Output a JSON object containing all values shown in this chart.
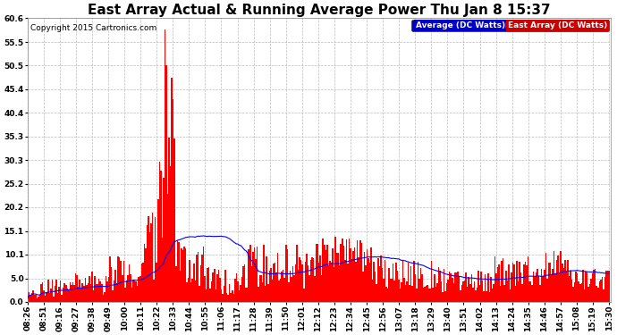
{
  "title": "East Array Actual & Running Average Power Thu Jan 8 15:37",
  "copyright": "Copyright 2015 Cartronics.com",
  "legend_avg": "Average (DC Watts)",
  "legend_east": "East Array (DC Watts)",
  "bar_color": "#FF0000",
  "avg_line_color": "#0000FF",
  "ylim": [
    0.0,
    60.6
  ],
  "yticks": [
    0.0,
    5.0,
    10.1,
    15.1,
    20.2,
    25.2,
    30.3,
    35.3,
    40.4,
    45.4,
    50.5,
    55.5,
    60.6
  ],
  "bg_color": "#FFFFFF",
  "grid_color": "#BBBBBB",
  "title_fontsize": 11,
  "tick_fontsize": 6.5,
  "copyright_fontsize": 6.5,
  "time_labels": [
    "08:26",
    "08:51",
    "09:16",
    "09:27",
    "09:38",
    "09:49",
    "10:00",
    "10:11",
    "10:22",
    "10:33",
    "10:44",
    "10:55",
    "11:06",
    "11:17",
    "11:28",
    "11:39",
    "11:50",
    "12:01",
    "12:12",
    "12:23",
    "12:34",
    "12:45",
    "12:56",
    "13:07",
    "13:18",
    "13:29",
    "13:40",
    "13:51",
    "14:02",
    "14:13",
    "14:24",
    "14:35",
    "14:46",
    "14:57",
    "15:08",
    "15:19",
    "15:30"
  ]
}
